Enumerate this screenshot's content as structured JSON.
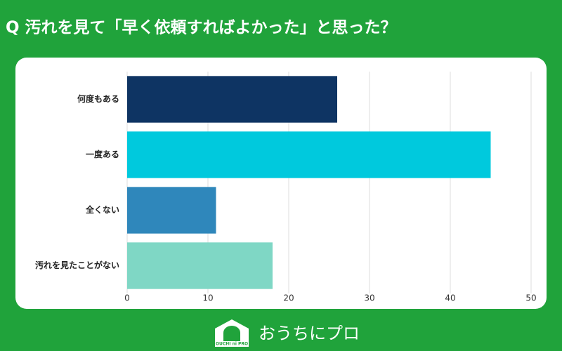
{
  "chart_data": {
    "type": "bar",
    "orientation": "horizontal",
    "title": "Q 汚れを見て「早く依頼すればよかった」と思った？",
    "categories": [
      "何度もある",
      "一度ある",
      "全くない",
      "汚れを見たことがない"
    ],
    "values": [
      26,
      45,
      11,
      18
    ],
    "colors": [
      "#0e3463",
      "#00c9dd",
      "#2f87bb",
      "#7fd7c5"
    ],
    "xlim": [
      0,
      50
    ],
    "xticks": [
      0,
      10,
      20,
      30,
      40,
      50
    ],
    "grid": true
  },
  "brand": {
    "name": "おうちにプロ",
    "logo_text": "OUCHI ni PRO"
  }
}
